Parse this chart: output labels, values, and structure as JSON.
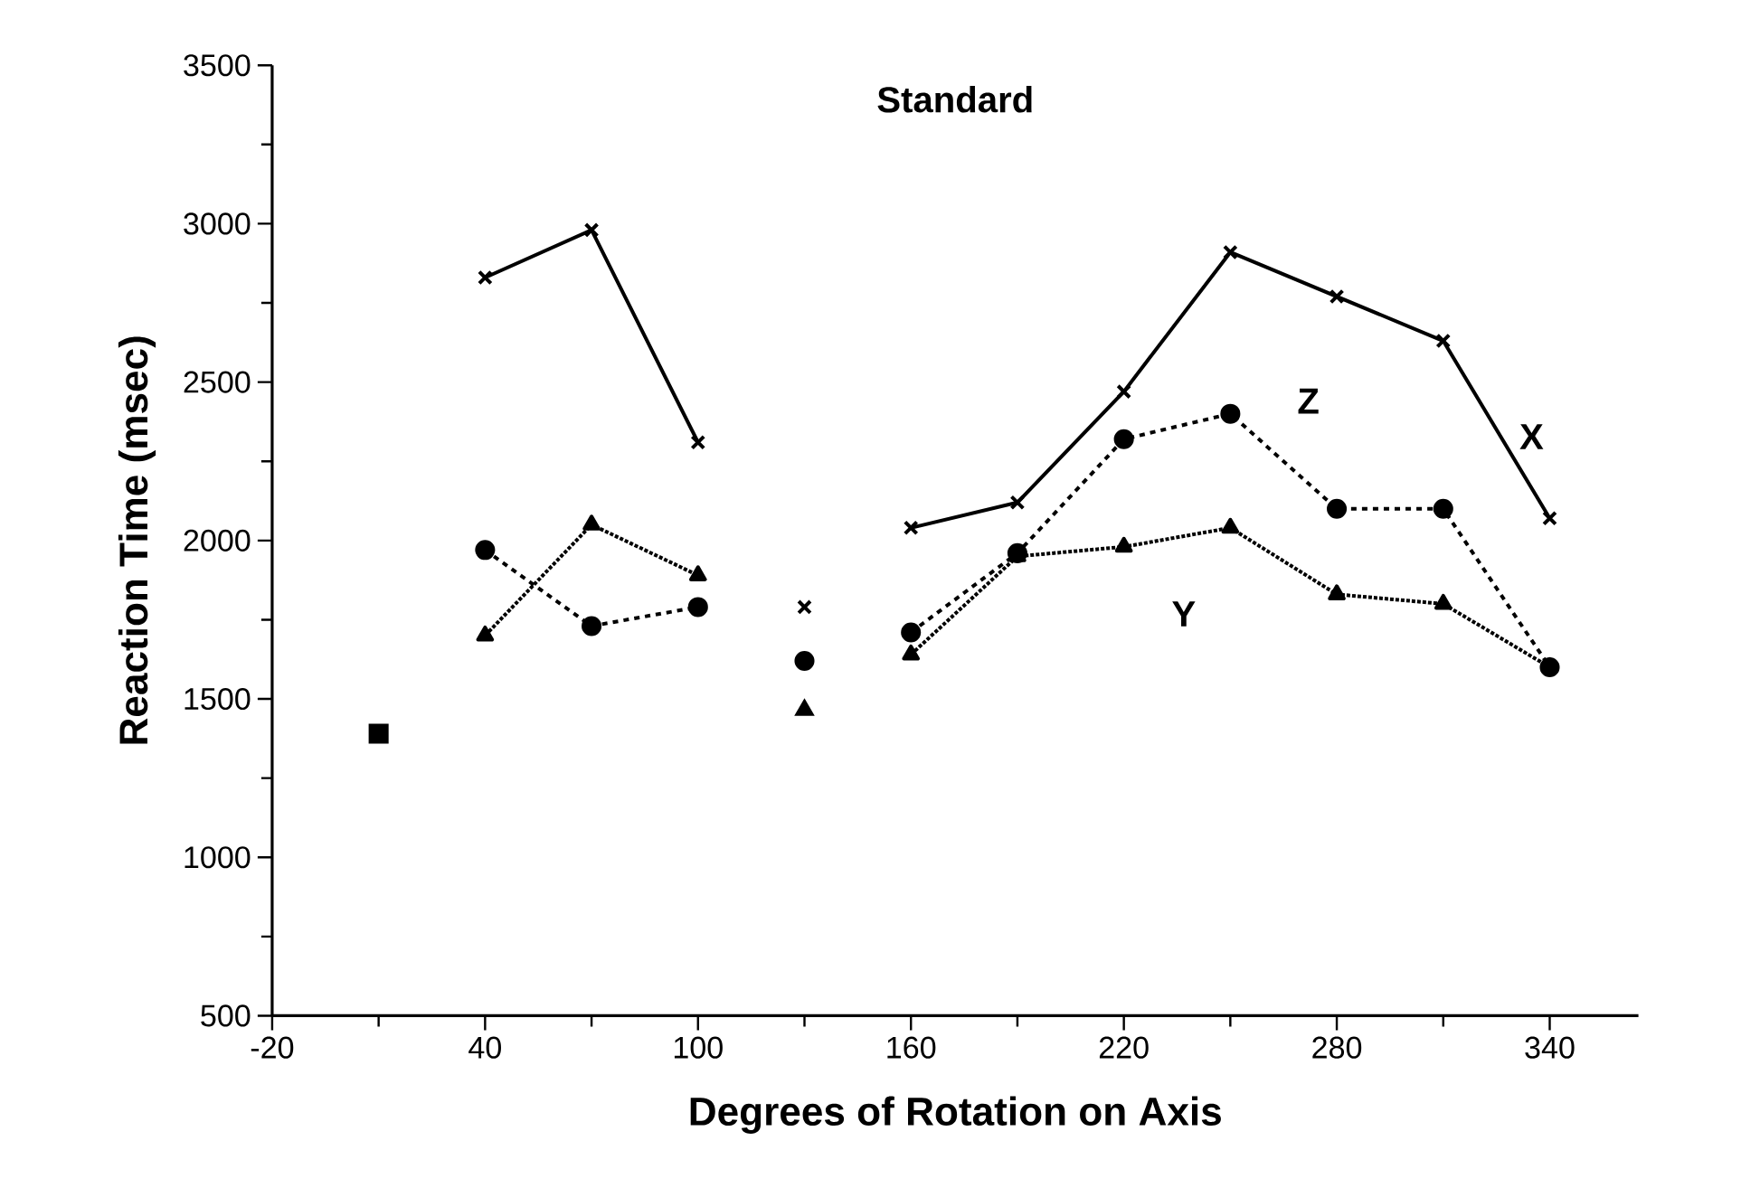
{
  "chart_data": {
    "type": "line",
    "title": "Standard",
    "xlabel": "Degrees of Rotation on Axis",
    "ylabel": "Reaction Time (msec)",
    "x": [
      10,
      40,
      70,
      100,
      130,
      160,
      190,
      220,
      250,
      280,
      310,
      340
    ],
    "series": [
      {
        "name": "X",
        "color": "#000000",
        "marker": "cross",
        "line_style": "solid",
        "values": [
          null,
          2830,
          2980,
          2310,
          null,
          2040,
          2120,
          2470,
          2910,
          2770,
          2630,
          2070
        ]
      },
      {
        "name": "Z",
        "color": "#000000",
        "marker": "circle",
        "line_style": "dashed",
        "values": [
          null,
          1970,
          1730,
          1790,
          null,
          1710,
          1960,
          2320,
          2400,
          2100,
          2100,
          1600
        ]
      },
      {
        "name": "Y",
        "color": "#000000",
        "marker": "triangle",
        "line_style": "dotted",
        "values": [
          null,
          1700,
          2050,
          1890,
          null,
          1640,
          1950,
          1980,
          2040,
          1830,
          1800,
          1600
        ]
      },
      {
        "type": "scatter",
        "color": "#000000",
        "marker": "cross",
        "values": [
          null,
          null,
          null,
          null,
          1790,
          null,
          null,
          null,
          null,
          null,
          null,
          null
        ]
      },
      {
        "type": "scatter",
        "color": "#000000",
        "marker": "circle",
        "values": [
          null,
          null,
          null,
          null,
          1620,
          null,
          null,
          null,
          null,
          null,
          null,
          null
        ]
      },
      {
        "type": "scatter",
        "color": "#000000",
        "marker": "triangle",
        "values": [
          null,
          null,
          null,
          null,
          1465,
          null,
          null,
          null,
          null,
          null,
          null,
          null
        ]
      },
      {
        "type": "scatter",
        "color": "#000000",
        "marker": "square",
        "values": [
          1390,
          null,
          null,
          null,
          null,
          null,
          null,
          null,
          null,
          null,
          null,
          null
        ]
      }
    ],
    "xlim": [
      -20,
      365
    ],
    "ylim": [
      500,
      3500
    ],
    "xticks": [
      -20,
      40,
      100,
      160,
      220,
      280,
      340
    ],
    "yticks": [
      500,
      1000,
      1500,
      2000,
      2500,
      3000,
      3500
    ],
    "grid": false
  }
}
